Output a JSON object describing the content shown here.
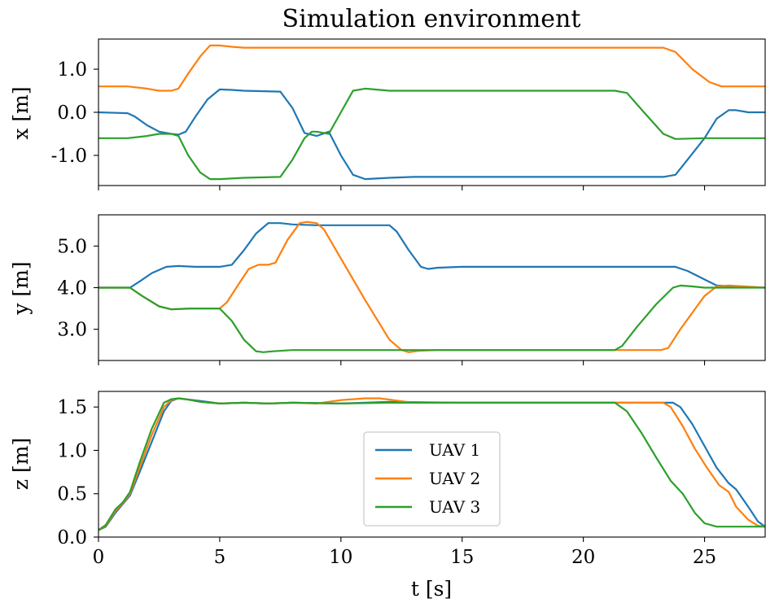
{
  "chart_data": {
    "type": "line",
    "title": "Simulation environment",
    "xlabel": "t [s]",
    "xlim": [
      0,
      27.5
    ],
    "xticks": [
      0,
      5,
      10,
      15,
      20,
      25
    ],
    "xtick_labels": [
      "0",
      "5",
      "10",
      "15",
      "20",
      "25"
    ],
    "colors": {
      "UAV 1": "#1f77b4",
      "UAV 2": "#ff7f0e",
      "UAV 3": "#2ca02c"
    },
    "legend": {
      "entries": [
        "UAV 1",
        "UAV 2",
        "UAV 3"
      ],
      "placement": "center-bottom of z panel"
    },
    "panels": [
      {
        "id": "x",
        "ylabel": "x [m]",
        "ylim": [
          -1.7,
          1.7
        ],
        "yticks": [
          1.0,
          0.0,
          -1.0
        ],
        "ytick_labels": [
          "1.0",
          "0.0",
          "-1.0"
        ],
        "series": [
          {
            "name": "UAV 1",
            "x": [
              0,
              1.2,
              1.5,
              2.0,
              2.5,
              3.0,
              3.3,
              3.6,
              4.0,
              4.5,
              5.0,
              5.5,
              6,
              7.5,
              8.0,
              8.5,
              9.0,
              9.5,
              10.0,
              10.5,
              11.0,
              12.0,
              13.0,
              23.3,
              23.8,
              24.3,
              25.0,
              25.5,
              26.0,
              26.3,
              26.8,
              27.5
            ],
            "y": [
              0.0,
              -0.02,
              -0.1,
              -0.3,
              -0.45,
              -0.5,
              -0.52,
              -0.45,
              -0.1,
              0.3,
              0.53,
              0.52,
              0.5,
              0.48,
              0.1,
              -0.48,
              -0.55,
              -0.45,
              -1.0,
              -1.45,
              -1.55,
              -1.52,
              -1.5,
              -1.5,
              -1.45,
              -1.1,
              -0.6,
              -0.15,
              0.05,
              0.05,
              0.0,
              0.0
            ]
          },
          {
            "name": "UAV 2",
            "x": [
              0,
              1.2,
              2.0,
              2.5,
              3.0,
              3.3,
              3.7,
              4.2,
              4.6,
              5.0,
              5.5,
              6.0,
              7.0,
              9.0,
              12.0,
              15.0,
              20.0,
              23.3,
              23.8,
              24.5,
              25.2,
              25.7,
              26.0,
              27.5
            ],
            "y": [
              0.6,
              0.6,
              0.55,
              0.5,
              0.5,
              0.55,
              0.9,
              1.3,
              1.55,
              1.55,
              1.52,
              1.5,
              1.5,
              1.5,
              1.5,
              1.5,
              1.5,
              1.5,
              1.4,
              1.0,
              0.7,
              0.6,
              0.6,
              0.6
            ]
          },
          {
            "name": "UAV 3",
            "x": [
              0,
              1.2,
              2.0,
              2.5,
              3.0,
              3.3,
              3.7,
              4.2,
              4.6,
              5.0,
              6.0,
              7.5,
              8.0,
              8.5,
              8.8,
              9.0,
              9.5,
              10.0,
              10.5,
              11.0,
              12.0,
              21.3,
              21.8,
              22.5,
              23.3,
              23.8,
              25.0,
              27.5
            ],
            "y": [
              -0.6,
              -0.6,
              -0.55,
              -0.5,
              -0.5,
              -0.55,
              -1.0,
              -1.4,
              -1.55,
              -1.55,
              -1.52,
              -1.5,
              -1.1,
              -0.6,
              -0.45,
              -0.45,
              -0.5,
              0.0,
              0.5,
              0.55,
              0.5,
              0.5,
              0.45,
              0.0,
              -0.5,
              -0.62,
              -0.6,
              -0.6
            ]
          }
        ]
      },
      {
        "id": "y",
        "ylabel": "y [m]",
        "ylim": [
          2.25,
          5.75
        ],
        "yticks": [
          5.0,
          4.0,
          3.0
        ],
        "ytick_labels": [
          "5.0",
          "4.0",
          "3.0"
        ],
        "series": [
          {
            "name": "UAV 1",
            "x": [
              0,
              1.3,
              1.7,
              2.2,
              2.8,
              3.3,
              4.0,
              5.0,
              5.5,
              6.0,
              6.5,
              7.0,
              7.5,
              8.0,
              9.0,
              12.0,
              12.3,
              12.8,
              13.3,
              13.6,
              14.0,
              15.0,
              20.0,
              23.8,
              24.3,
              25.5,
              27.5
            ],
            "y": [
              4.0,
              4.0,
              4.15,
              4.35,
              4.5,
              4.52,
              4.5,
              4.5,
              4.55,
              4.9,
              5.3,
              5.55,
              5.55,
              5.52,
              5.5,
              5.5,
              5.35,
              4.9,
              4.5,
              4.45,
              4.48,
              4.5,
              4.5,
              4.5,
              4.4,
              4.05,
              4.0
            ]
          },
          {
            "name": "UAV 2",
            "x": [
              0,
              1.3,
              1.8,
              2.5,
              3.0,
              3.8,
              4.6,
              5.0,
              5.3,
              5.8,
              6.2,
              6.6,
              7.0,
              7.3,
              7.8,
              8.3,
              8.6,
              9.0,
              9.3,
              10.0,
              11.0,
              12.0,
              12.5,
              12.8,
              13.2,
              14.0,
              15.0,
              20.0,
              23.2,
              23.5,
              24.0,
              25.0,
              25.5,
              26.0,
              27.5
            ],
            "y": [
              4.0,
              4.0,
              3.8,
              3.55,
              3.48,
              3.5,
              3.5,
              3.5,
              3.65,
              4.1,
              4.45,
              4.55,
              4.55,
              4.6,
              5.15,
              5.55,
              5.58,
              5.55,
              5.4,
              4.7,
              3.7,
              2.75,
              2.5,
              2.45,
              2.48,
              2.5,
              2.5,
              2.5,
              2.5,
              2.55,
              3.0,
              3.8,
              4.03,
              4.05,
              4.0
            ]
          },
          {
            "name": "UAV 3",
            "x": [
              0,
              1.3,
              1.8,
              2.5,
              3.0,
              3.8,
              4.6,
              5.0,
              5.5,
              6.0,
              6.5,
              6.8,
              7.2,
              8.0,
              10.0,
              15.0,
              20.0,
              21.3,
              21.6,
              22.2,
              23.0,
              23.7,
              24.0,
              24.5,
              25.0,
              27.5
            ],
            "y": [
              4.0,
              4.0,
              3.8,
              3.55,
              3.48,
              3.5,
              3.5,
              3.5,
              3.2,
              2.75,
              2.47,
              2.45,
              2.47,
              2.5,
              2.5,
              2.5,
              2.5,
              2.5,
              2.6,
              3.05,
              3.6,
              4.0,
              4.05,
              4.03,
              4.0,
              4.0
            ]
          }
        ]
      },
      {
        "id": "z",
        "ylabel": "z [m]",
        "ylim": [
          0.0,
          1.68
        ],
        "yticks": [
          1.5,
          1.0,
          0.5,
          0.0
        ],
        "ytick_labels": [
          "1.5",
          "1.0",
          "0.5",
          "0.0"
        ],
        "series": [
          {
            "name": "UAV 1",
            "x": [
              0,
              0.3,
              0.7,
              1.0,
              1.3,
              1.7,
              2.2,
              2.7,
              3.0,
              3.3,
              3.6,
              4.2,
              5.0,
              6.0,
              7.0,
              8.0,
              10.0,
              12.0,
              15.0,
              20.0,
              23.7,
              24.0,
              24.5,
              25.0,
              25.5,
              26.0,
              26.3,
              26.8,
              27.2,
              27.5
            ],
            "y": [
              0.08,
              0.12,
              0.28,
              0.38,
              0.48,
              0.75,
              1.1,
              1.45,
              1.57,
              1.6,
              1.59,
              1.57,
              1.54,
              1.55,
              1.54,
              1.55,
              1.54,
              1.56,
              1.55,
              1.55,
              1.55,
              1.5,
              1.3,
              1.05,
              0.8,
              0.62,
              0.55,
              0.35,
              0.18,
              0.12
            ]
          },
          {
            "name": "UAV 2",
            "x": [
              0,
              0.3,
              0.7,
              1.0,
              1.3,
              1.7,
              2.2,
              2.7,
              3.0,
              3.3,
              3.6,
              4.2,
              5.0,
              6.0,
              7.0,
              8.0,
              9.0,
              10.0,
              11.0,
              11.6,
              12.4,
              13.0,
              15.0,
              20.0,
              23.3,
              23.6,
              24.1,
              24.6,
              25.1,
              25.6,
              26.0,
              26.3,
              26.8,
              27.2,
              27.5
            ],
            "y": [
              0.08,
              0.13,
              0.3,
              0.39,
              0.5,
              0.8,
              1.18,
              1.5,
              1.58,
              1.6,
              1.59,
              1.56,
              1.54,
              1.55,
              1.54,
              1.55,
              1.54,
              1.58,
              1.6,
              1.6,
              1.57,
              1.55,
              1.55,
              1.55,
              1.55,
              1.5,
              1.28,
              1.02,
              0.8,
              0.6,
              0.52,
              0.35,
              0.2,
              0.13,
              0.12
            ]
          },
          {
            "name": "UAV 3",
            "x": [
              0,
              0.3,
              0.7,
              1.0,
              1.3,
              1.7,
              2.2,
              2.7,
              3.0,
              3.3,
              3.6,
              4.2,
              5.0,
              6.0,
              7.0,
              8.0,
              10.0,
              12.0,
              15.0,
              20.0,
              21.3,
              21.8,
              22.4,
              23.0,
              23.6,
              24.1,
              24.6,
              25.0,
              25.5,
              26.0,
              27.5
            ],
            "y": [
              0.08,
              0.14,
              0.32,
              0.4,
              0.52,
              0.86,
              1.25,
              1.55,
              1.59,
              1.6,
              1.59,
              1.56,
              1.54,
              1.55,
              1.54,
              1.55,
              1.54,
              1.55,
              1.55,
              1.55,
              1.55,
              1.45,
              1.2,
              0.92,
              0.65,
              0.5,
              0.28,
              0.16,
              0.12,
              0.12,
              0.12
            ]
          }
        ]
      }
    ]
  }
}
